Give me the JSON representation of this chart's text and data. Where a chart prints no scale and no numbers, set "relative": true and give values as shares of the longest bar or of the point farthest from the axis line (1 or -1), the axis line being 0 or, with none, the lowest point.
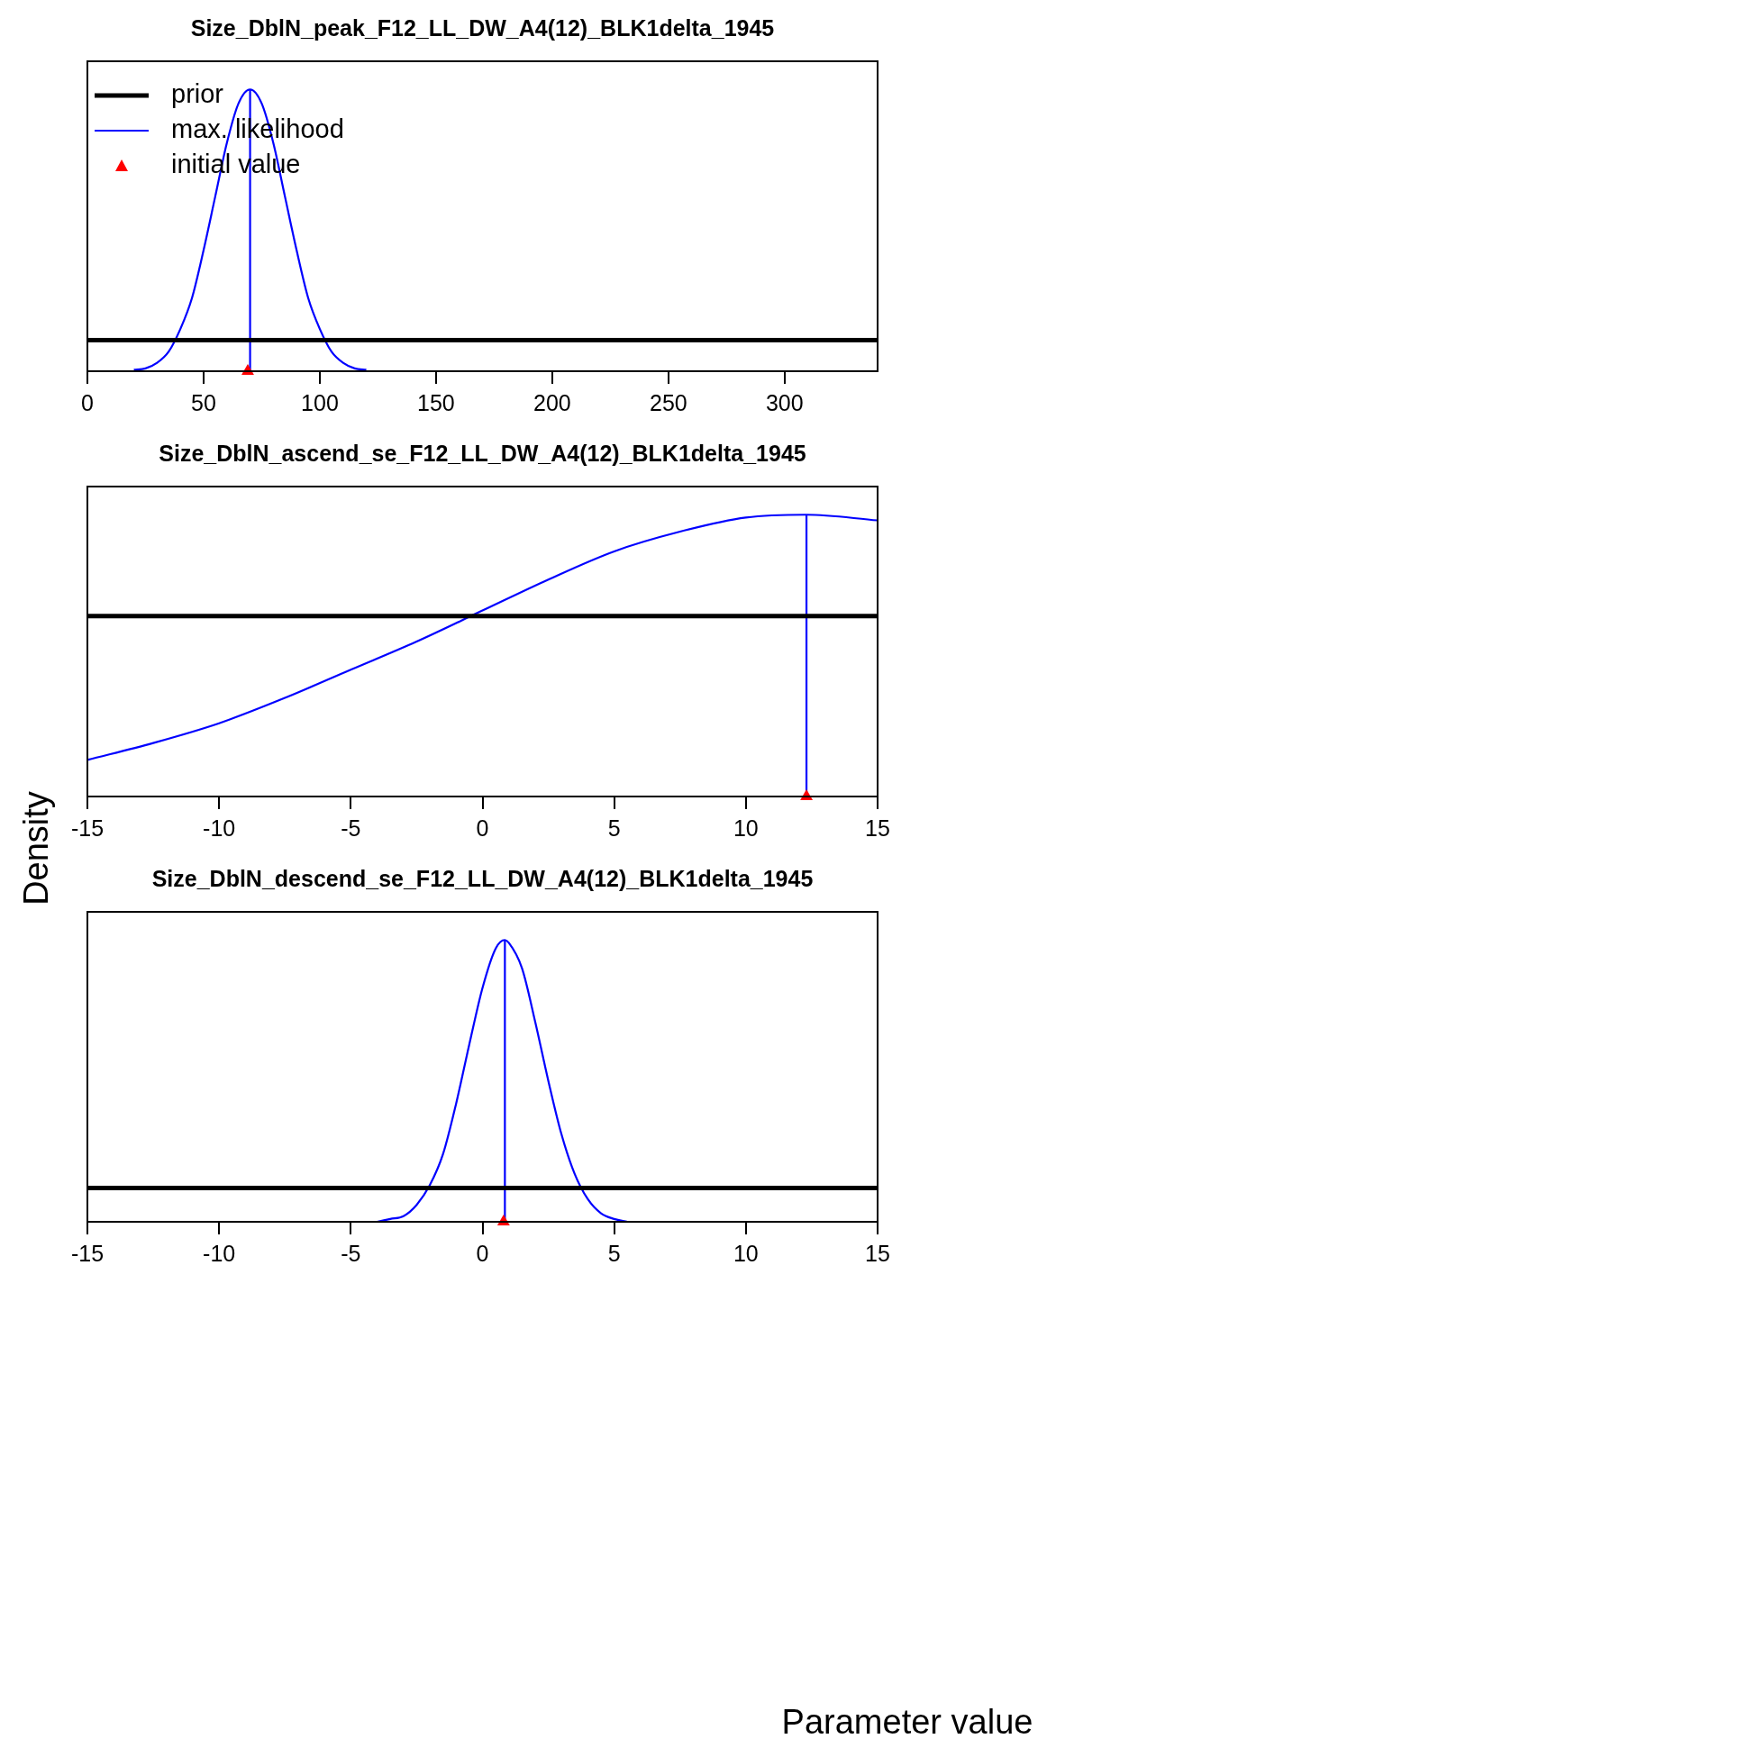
{
  "chart_data": [
    {
      "type": "line",
      "title": "Size_DblN_peak_F12_LL_DW_A4(12)_BLK1delta_1945",
      "relative": true,
      "xlim": [
        0,
        340
      ],
      "xticks": [
        0,
        50,
        100,
        150,
        200,
        250,
        300
      ],
      "legend": "top left",
      "grid": false,
      "line_style": "solid",
      "series": [
        {
          "name": "prior",
          "color": "#000000",
          "marker": "none",
          "x": [
            0,
            340
          ],
          "values": [
            0.11,
            0.11
          ]
        },
        {
          "name": "max. likelihood",
          "color": "#0000ff",
          "marker": "none",
          "x": [
            20,
            25,
            30,
            35,
            40,
            45,
            50,
            55,
            60,
            65,
            70,
            75,
            80,
            85,
            90,
            95,
            100,
            105,
            110,
            115,
            120
          ],
          "values": [
            0.005,
            0.01,
            0.03,
            0.07,
            0.15,
            0.26,
            0.43,
            0.62,
            0.81,
            0.95,
            1,
            0.95,
            0.81,
            0.62,
            0.43,
            0.26,
            0.15,
            0.07,
            0.03,
            0.01,
            0.005
          ]
        },
        {
          "color": "#0000ff",
          "marker": "none",
          "x": [
            70,
            70
          ],
          "values": [
            0,
            1
          ]
        },
        {
          "name": "initial value",
          "type": "scatter",
          "color": "#ff0000",
          "marker": "triangle",
          "x": [
            69
          ],
          "values": [
            0
          ]
        }
      ]
    },
    {
      "type": "line",
      "title": "Size_DblN_ascend_se_F12_LL_DW_A4(12)_BLK1delta_1945",
      "ylabel": "Density",
      "relative": true,
      "xlim": [
        -15,
        15
      ],
      "xticks": [
        -15,
        -10,
        -5,
        0,
        5,
        10,
        15
      ],
      "legend": false,
      "grid": false,
      "line_style": "solid",
      "series": [
        {
          "color": "#000000",
          "marker": "none",
          "x": [
            -15,
            15
          ],
          "values": [
            0.64,
            0.64
          ]
        },
        {
          "color": "#0000ff",
          "marker": "none",
          "x": [
            -15,
            -12.5,
            -10,
            -7.5,
            -5,
            -2.5,
            0,
            2.5,
            5,
            7.5,
            10,
            12.3,
            15
          ],
          "values": [
            0.13,
            0.19,
            0.26,
            0.35,
            0.45,
            0.55,
            0.66,
            0.77,
            0.87,
            0.94,
            0.99,
            1,
            0.98
          ]
        },
        {
          "color": "#0000ff",
          "marker": "none",
          "x": [
            12.3,
            12.3
          ],
          "values": [
            0,
            1
          ]
        },
        {
          "type": "scatter",
          "color": "#ff0000",
          "marker": "triangle",
          "x": [
            12.3
          ],
          "values": [
            0
          ]
        }
      ]
    },
    {
      "type": "line",
      "title": "Size_DblN_descend_se_F12_LL_DW_A4(12)_BLK1delta_1945",
      "xlabel": "Parameter value",
      "relative": true,
      "xlim": [
        -15,
        15
      ],
      "xticks": [
        -15,
        -10,
        -5,
        0,
        5,
        10,
        15
      ],
      "legend": false,
      "grid": false,
      "line_style": "solid",
      "series": [
        {
          "color": "#000000",
          "marker": "none",
          "x": [
            -15,
            15
          ],
          "values": [
            0.12,
            0.12
          ]
        },
        {
          "color": "#0000ff",
          "marker": "none",
          "x": [
            -4,
            -3.5,
            -3,
            -2.5,
            -2,
            -1.5,
            -1,
            -0.5,
            0,
            0.5,
            0.85,
            1,
            1.5,
            2,
            2.5,
            3,
            3.5,
            4,
            4.5,
            5,
            5.5
          ],
          "values": [
            0,
            0.01,
            0.02,
            0.06,
            0.13,
            0.24,
            0.42,
            0.63,
            0.83,
            0.97,
            1,
            0.99,
            0.9,
            0.71,
            0.5,
            0.31,
            0.17,
            0.08,
            0.03,
            0.01,
            0
          ]
        },
        {
          "color": "#0000ff",
          "marker": "none",
          "x": [
            0.85,
            0.85
          ],
          "values": [
            0,
            1
          ]
        },
        {
          "type": "scatter",
          "color": "#ff0000",
          "marker": "triangle",
          "x": [
            0.8
          ],
          "values": [
            0
          ]
        }
      ]
    }
  ]
}
